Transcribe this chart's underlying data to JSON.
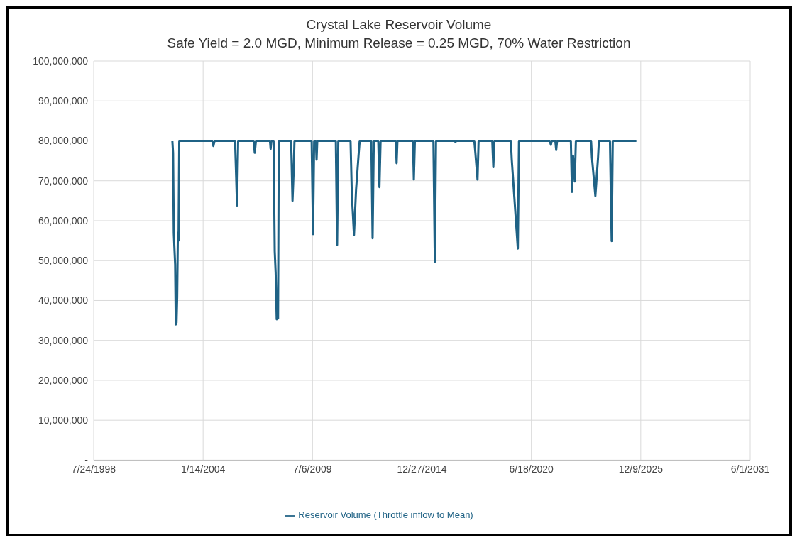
{
  "chart_data": {
    "type": "line",
    "title": "Crystal Lake Reservoir Volume",
    "subtitle": "Safe Yield = 2.0 MGD, Minimum Release = 0.25 MGD, 70% Water Restriction",
    "xlim": [
      "1998-07-24",
      "2031-06-01"
    ],
    "xticks": [
      {
        "value": "1998-07-24",
        "label": "7/24/1998"
      },
      {
        "value": "2004-01-14",
        "label": "1/14/2004"
      },
      {
        "value": "2009-07-06",
        "label": "7/6/2009"
      },
      {
        "value": "2014-12-27",
        "label": "12/27/2014"
      },
      {
        "value": "2020-06-18",
        "label": "6/18/2020"
      },
      {
        "value": "2025-12-09",
        "label": "12/9/2025"
      },
      {
        "value": "2031-06-01",
        "label": "6/1/2031"
      }
    ],
    "ylim": [
      0,
      100000000
    ],
    "yticks": [
      {
        "value": 0,
        "label": "-"
      },
      {
        "value": 10000000,
        "label": "10,000,000"
      },
      {
        "value": 20000000,
        "label": "20,000,000"
      },
      {
        "value": 30000000,
        "label": "30,000,000"
      },
      {
        "value": 40000000,
        "label": "40,000,000"
      },
      {
        "value": 50000000,
        "label": "50,000,000"
      },
      {
        "value": 60000000,
        "label": "60,000,000"
      },
      {
        "value": 70000000,
        "label": "70,000,000"
      },
      {
        "value": 80000000,
        "label": "80,000,000"
      },
      {
        "value": 90000000,
        "label": "90,000,000"
      },
      {
        "value": 100000000,
        "label": "100,000,000"
      }
    ],
    "grid": true,
    "legend": "bottom",
    "series": [
      {
        "name": "Reservoir Volume (Throttle inflow to Mean)",
        "color": "#1f6285",
        "x": [
          "2002-07-01",
          "2002-07-14",
          "2002-07-27",
          "2002-08-08",
          "2002-08-21",
          "2002-09-02",
          "2002-09-15",
          "2002-09-27",
          "2002-10-10",
          "2002-10-22",
          "2002-11-04",
          "2004-07-01",
          "2004-07-20",
          "2004-08-10",
          "2005-08-20",
          "2005-09-10",
          "2005-09-25",
          "2005-10-15",
          "2006-07-25",
          "2006-08-15",
          "2006-09-05",
          "2007-05-20",
          "2007-06-01",
          "2007-06-15",
          "2007-07-25",
          "2007-08-15",
          "2007-09-01",
          "2007-09-20",
          "2007-10-15",
          "2007-10-28",
          "2008-06-10",
          "2008-07-05",
          "2008-07-25",
          "2008-08-10",
          "2009-06-20",
          "2009-07-15",
          "2009-08-05",
          "2009-09-05",
          "2009-09-18",
          "2009-10-01",
          "2010-09-05",
          "2010-09-28",
          "2010-10-20",
          "2011-06-01",
          "2011-06-25",
          "2011-08-03",
          "2011-09-10",
          "2011-10-25",
          "2011-11-15",
          "2012-06-15",
          "2012-07-08",
          "2012-07-30",
          "2012-10-20",
          "2012-11-10",
          "2012-12-01",
          "2013-09-05",
          "2013-09-20",
          "2013-10-05",
          "2014-07-15",
          "2014-08-01",
          "2014-08-20",
          "2015-07-25",
          "2015-08-20",
          "2015-09-10",
          "2016-08-20",
          "2016-09-01",
          "2016-09-12",
          "2017-08-10",
          "2017-08-30",
          "2017-10-08",
          "2017-10-28",
          "2018-07-05",
          "2018-07-24",
          "2018-08-12",
          "2019-06-10",
          "2019-06-25",
          "2019-10-15",
          "2019-11-05",
          "2021-05-20",
          "2021-06-10",
          "2021-06-25",
          "2021-08-30",
          "2021-09-15",
          "2021-10-01",
          "2022-06-10",
          "2022-07-01",
          "2022-07-20",
          "2022-08-20",
          "2022-09-10",
          "2023-06-15",
          "2023-07-01",
          "2023-09-01",
          "2023-10-20",
          "2023-11-05",
          "2024-05-25",
          "2024-06-25",
          "2024-07-15",
          "2025-09-20"
        ],
        "values": [
          80000000,
          77000000,
          57000000,
          53000000,
          49000000,
          34000000,
          34500000,
          41000000,
          57000000,
          55000000,
          80000000,
          80000000,
          78700000,
          80000000,
          80000000,
          70700000,
          63800000,
          80000000,
          80000000,
          77000000,
          80000000,
          80000000,
          78000000,
          80000000,
          80000000,
          52300000,
          47000000,
          35300000,
          35500000,
          80000000,
          80000000,
          65000000,
          72000000,
          80000000,
          80000000,
          56600000,
          80000000,
          80000000,
          75300000,
          80000000,
          80000000,
          53900000,
          80000000,
          80000000,
          66400000,
          56400000,
          67800000,
          76300000,
          80000000,
          80000000,
          55600000,
          80000000,
          80000000,
          68400000,
          80000000,
          80000000,
          74400000,
          80000000,
          80000000,
          70300000,
          80000000,
          80000000,
          49700000,
          80000000,
          80000000,
          79700000,
          80000000,
          80000000,
          77000000,
          70300000,
          80000000,
          80000000,
          73400000,
          80000000,
          80000000,
          75500000,
          53000000,
          80000000,
          80000000,
          79000000,
          80000000,
          80000000,
          77700000,
          80000000,
          80000000,
          67200000,
          76300000,
          69800000,
          80000000,
          80000000,
          75800000,
          66200000,
          75800000,
          80000000,
          80000000,
          54900000,
          80000000,
          80000000
        ]
      }
    ]
  }
}
